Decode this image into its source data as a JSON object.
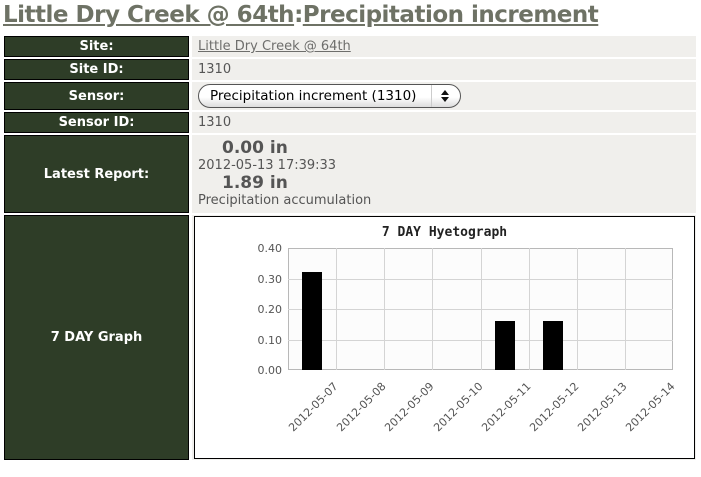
{
  "header": {
    "site_link": "Little Dry Creek @ 64th",
    "separator": ":",
    "sensor_link": "Precipitation increment"
  },
  "rows": {
    "site": {
      "label": "Site:",
      "value": "Little Dry Creek @ 64th"
    },
    "site_id": {
      "label": "Site ID:",
      "value": "1310"
    },
    "sensor": {
      "label": "Sensor:",
      "selected_option": "Precipitation increment (1310)"
    },
    "sensor_id": {
      "label": "Sensor ID:",
      "value": "1310"
    },
    "latest_report": {
      "label": "Latest Report:",
      "increment_value": "0.00 in",
      "timestamp": "2012-05-13 17:39:33",
      "accumulation_value": "1.89 in",
      "accumulation_caption": "Precipitation accumulation"
    },
    "graph": {
      "label": "7 DAY Graph"
    }
  },
  "colors": {
    "header_green": "#2e3d27",
    "title_link": "#6e7265",
    "value_text": "#555555",
    "bar": "#000000",
    "row_bg": "#f0efec"
  },
  "chart_data": {
    "type": "bar",
    "title": "7 DAY Hyetograph",
    "categories": [
      "2012-05-07",
      "2012-05-08",
      "2012-05-09",
      "2012-05-10",
      "2012-05-11",
      "2012-05-12",
      "2012-05-13",
      "2012-05-14"
    ],
    "values": [
      0.32,
      0,
      0,
      0,
      0.16,
      0.16,
      0,
      0
    ],
    "xlabel": "",
    "ylabel": "",
    "ylim": [
      0,
      0.4
    ],
    "yticks": [
      0,
      0.1,
      0.2,
      0.3,
      0.4
    ],
    "grid": true,
    "legend_position": "none",
    "bar_color": "#000000"
  }
}
